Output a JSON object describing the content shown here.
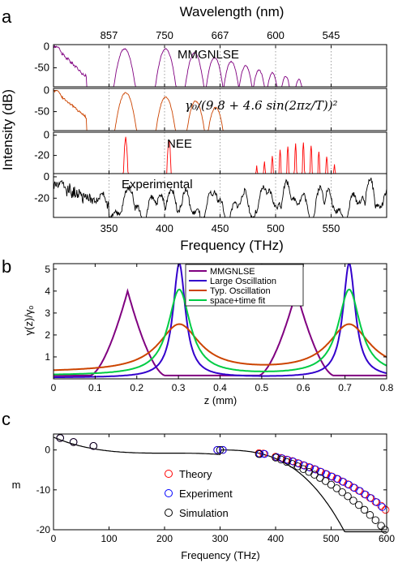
{
  "panels": {
    "a": {
      "letter": "a",
      "top_axis_label": "Wavelength (nm)",
      "top_ticks": [
        "857",
        "750",
        "667",
        "600",
        "545"
      ],
      "top_ticks_freq": [
        350,
        400,
        450,
        500,
        550
      ],
      "x_label": "Frequency (THz)",
      "x_ticks": [
        "350",
        "400",
        "450",
        "500",
        "550"
      ],
      "y_label": "Intensity (dB)",
      "xlim": [
        300,
        600
      ],
      "subplots": [
        {
          "annotation": "MMGNLSE",
          "ticks": [
            "0",
            "-50"
          ],
          "ylim": [
            -95,
            5
          ],
          "color": "#800080"
        },
        {
          "annotation": "γ₀/(9.8 + 4.6 sin(2πz/T))²",
          "ticks": [
            "0",
            "-50"
          ],
          "ylim": [
            -95,
            5
          ],
          "color": "#cc4400"
        },
        {
          "annotation": "NEE",
          "ticks": [
            "0",
            "-20"
          ],
          "ylim": [
            -38,
            3
          ],
          "color": "#ff0000"
        },
        {
          "annotation": "Experimental",
          "ticks": [
            "0",
            "-20"
          ],
          "ylim": [
            -38,
            3
          ],
          "color": "#000000"
        }
      ]
    },
    "b": {
      "letter": "b",
      "x_label": "z (mm)",
      "y_label": "γ(z)/γₒ",
      "x_ticks": [
        "0",
        "0.1",
        "0.2",
        "0.3",
        "0.4",
        "0.5",
        "0.6",
        "0.7",
        "0.8"
      ],
      "y_ticks": [
        "1",
        "2",
        "3",
        "4",
        "5"
      ]
    },
    "c": {
      "letter": "c",
      "x_label": "Frequency (THz)",
      "y_label": "m",
      "x_ticks": [
        "0",
        "100",
        "200",
        "300",
        "400",
        "500",
        "600"
      ],
      "y_ticks": [
        "0",
        "-10",
        "-20"
      ]
    }
  },
  "chart_data": [
    {
      "type": "line",
      "title": "",
      "xlabel": "Frequency (THz)",
      "ylabel": "Intensity (dB)",
      "xlim": [
        300,
        600
      ],
      "note": "Four stacked spectra with shared frequency axis; top axis Wavelength (nm)",
      "series": [
        {
          "name": "MMGNLSE",
          "color": "#800080",
          "peaks_x": [
            303,
            364,
            401,
            427,
            445,
            460,
            473,
            485,
            497,
            509,
            521
          ],
          "peaks_y": [
            0,
            -5,
            -5,
            -15,
            -25,
            -35,
            -45,
            -55,
            -62,
            -70,
            -78
          ]
        },
        {
          "name": "γ₀/(9.8 + 4.6 sin(2πz/T))²",
          "color": "#cc4400",
          "peaks_x": [
            303,
            365,
            401,
            428,
            446
          ],
          "peaks_y": [
            0,
            -5,
            -15,
            -25,
            -40
          ]
        },
        {
          "name": "NEE",
          "color": "#ff0000",
          "peaks_x": [
            365,
            404,
            483,
            490,
            497,
            504,
            511,
            518,
            525,
            532,
            539,
            546,
            553
          ],
          "peaks_y": [
            -3,
            -5,
            -30,
            -25,
            -20,
            -15,
            -10,
            -8,
            -8,
            -10,
            -15,
            -20,
            -28
          ]
        },
        {
          "name": "Experimental",
          "color": "#000000",
          "peaks_x": [
            307,
            368,
            406,
            445,
            489,
            510,
            540,
            585
          ],
          "peaks_y": [
            -5,
            -10,
            -12,
            -15,
            -10,
            -5,
            -10,
            -2
          ]
        }
      ]
    },
    {
      "type": "line",
      "title": "",
      "xlabel": "z (mm)",
      "ylabel": "γ(z)/γₒ",
      "xlim": [
        0,
        0.8
      ],
      "ylim": [
        0,
        5.25
      ],
      "legend": "top-center",
      "series": [
        {
          "name": "MMGNLSE",
          "color": "#800080",
          "peaks_x": [
            0.178,
            0.583
          ],
          "peak_y": 4.0,
          "base_y": 0.15
        },
        {
          "name": "Large Oscillation",
          "color": "#3300cc",
          "peaks_x": [
            0.302,
            0.71
          ],
          "peak_y": 5.25,
          "base_y": 0.05
        },
        {
          "name": "Typ. Oscillation",
          "color": "#cc4400",
          "peaks_x": [
            0.302,
            0.71
          ],
          "peak_y": 2.45,
          "base_y": 0.3
        },
        {
          "name": "space+time fit",
          "color": "#00cc44",
          "peaks_x": [
            0.302,
            0.71
          ],
          "peak_y": 4.05,
          "base_y": 0.15
        }
      ]
    },
    {
      "type": "scatter",
      "title": "",
      "xlabel": "Frequency (THz)",
      "ylabel": "m",
      "xlim": [
        0,
        600
      ],
      "ylim": [
        -20,
        4
      ],
      "legend": "bottom-left",
      "series": [
        {
          "name": "Theory",
          "color": "#ff0000",
          "x": [
            12,
            36,
            72,
            295,
            305,
            370,
            378,
            400,
            410,
            420,
            430,
            440,
            450,
            460,
            470,
            480,
            490,
            500,
            510,
            520,
            530,
            540,
            550,
            560,
            570,
            580,
            590,
            598
          ],
          "y": [
            3,
            2,
            1,
            0,
            0,
            -0.8,
            -0.9,
            -1.7,
            -2,
            -2.4,
            -2.8,
            -3.3,
            -3.8,
            -4.3,
            -4.8,
            -5.4,
            -6,
            -6.6,
            -7.2,
            -7.9,
            -8.6,
            -9.4,
            -10.2,
            -11.1,
            -12,
            -13,
            -14,
            -15
          ]
        },
        {
          "name": "Experiment",
          "color": "#0000ff",
          "x": [
            12,
            36,
            72,
            295,
            305,
            372,
            380,
            402,
            412,
            422,
            432,
            442,
            452,
            462,
            472,
            482,
            492,
            502,
            512,
            522,
            532,
            542,
            552,
            562,
            572,
            582,
            592
          ],
          "y": [
            3,
            2,
            1,
            0,
            0,
            -1,
            -1,
            -1.8,
            -2.1,
            -2.5,
            -2.9,
            -3.4,
            -3.9,
            -4.4,
            -4.9,
            -5.5,
            -6.1,
            -6.7,
            -7.3,
            -8,
            -8.7,
            -9.5,
            -10.3,
            -11.2,
            -12.1,
            -13.1,
            -14.3
          ]
        },
        {
          "name": "Simulation",
          "color": "#000000",
          "x": [
            12,
            36,
            72,
            300,
            370,
            400,
            410,
            420,
            430,
            440,
            450,
            460,
            470,
            480,
            490,
            500,
            510,
            520,
            530,
            540,
            550,
            560,
            570,
            580,
            590,
            597
          ],
          "y": [
            3,
            2,
            1,
            0,
            -1,
            -1.9,
            -2.4,
            -3,
            -3.5,
            -4.1,
            -4.8,
            -5.5,
            -6.2,
            -7,
            -7.8,
            -8.7,
            -9.6,
            -10.6,
            -11.6,
            -12.7,
            -13.8,
            -15,
            -16.3,
            -17.6,
            -19,
            -20
          ]
        }
      ],
      "fit": {
        "name": "",
        "color": "#000000",
        "x_range": [
          0,
          600
        ]
      }
    }
  ]
}
